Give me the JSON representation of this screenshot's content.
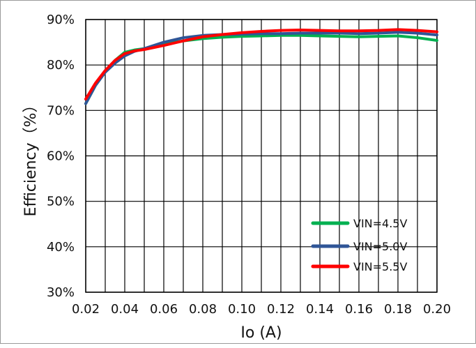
{
  "chart_data": {
    "type": "line",
    "title": "",
    "xlabel": "Io (A)",
    "ylabel": "Efficiency（%）",
    "xlim": [
      0.02,
      0.2
    ],
    "ylim": [
      30,
      90
    ],
    "x_ticks": [
      "0.02",
      "0.04",
      "0.06",
      "0.08",
      "0.10",
      "0.12",
      "0.14",
      "0.16",
      "0.18",
      "0.20"
    ],
    "y_ticks": [
      "30%",
      "40%",
      "50%",
      "60%",
      "70%",
      "80%",
      "90%"
    ],
    "x_grid_step": 0.01,
    "y_grid_step": 10,
    "grid": true,
    "legend_position": "bottom-right",
    "x": [
      0.02,
      0.025,
      0.03,
      0.035,
      0.04,
      0.045,
      0.05,
      0.06,
      0.07,
      0.08,
      0.09,
      0.1,
      0.11,
      0.12,
      0.13,
      0.14,
      0.15,
      0.16,
      0.17,
      0.18,
      0.19,
      0.2
    ],
    "series": [
      {
        "name": "VIN=4.5V",
        "color": "#00b050",
        "values": [
          71.5,
          75.5,
          78.5,
          81.0,
          82.8,
          83.3,
          83.6,
          84.6,
          85.3,
          85.8,
          86.1,
          86.3,
          86.4,
          86.5,
          86.5,
          86.4,
          86.3,
          86.2,
          86.3,
          86.4,
          86.0,
          85.4
        ]
      },
      {
        "name": "VIN=5.0V",
        "color": "#2f5597",
        "values": [
          71.5,
          75.5,
          78.4,
          80.4,
          82.0,
          83.0,
          83.6,
          85.0,
          86.0,
          86.5,
          86.7,
          86.8,
          86.9,
          86.9,
          87.0,
          87.0,
          87.0,
          86.9,
          87.0,
          87.2,
          87.0,
          86.6
        ]
      },
      {
        "name": "VIN=5.5V",
        "color": "#ff0000",
        "values": [
          72.5,
          76.0,
          78.8,
          81.0,
          82.5,
          83.1,
          83.4,
          84.3,
          85.3,
          86.2,
          86.7,
          87.1,
          87.4,
          87.6,
          87.7,
          87.6,
          87.5,
          87.5,
          87.6,
          87.8,
          87.6,
          87.3
        ]
      }
    ]
  }
}
